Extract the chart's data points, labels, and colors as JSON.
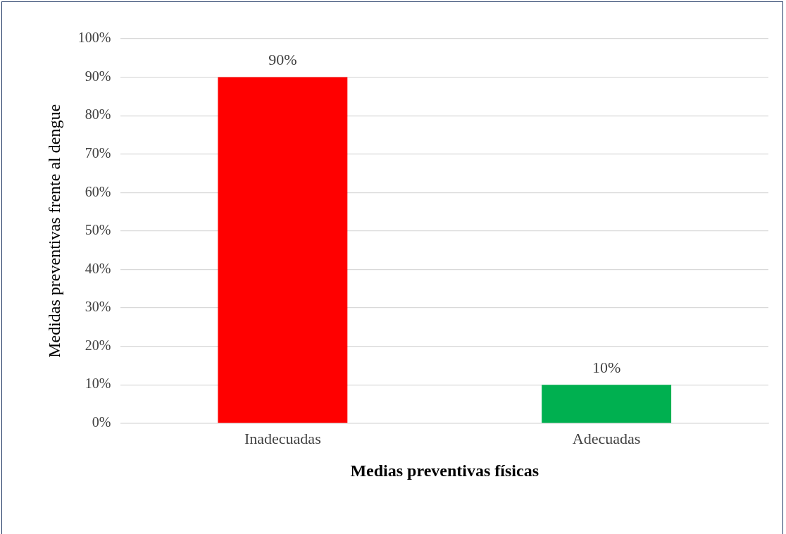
{
  "chart_data": {
    "type": "bar",
    "xlabel": "Medias preventivas físicas",
    "ylabel": "Medidas preventivas frente al dengue",
    "categories": [
      "Inadecuadas",
      "Adecuadas"
    ],
    "values": [
      90,
      10
    ],
    "colors": [
      "#ff0000",
      "#00b050"
    ],
    "value_labels": [
      "90%",
      "10%"
    ],
    "ylim": [
      0,
      100
    ],
    "yticks": [
      {
        "value": 0,
        "label": "0%"
      },
      {
        "value": 10,
        "label": "10%"
      },
      {
        "value": 20,
        "label": "20%"
      },
      {
        "value": 30,
        "label": "30%"
      },
      {
        "value": 40,
        "label": "40%"
      },
      {
        "value": 50,
        "label": "50%"
      },
      {
        "value": 60,
        "label": "60%"
      },
      {
        "value": 70,
        "label": "70%"
      },
      {
        "value": 80,
        "label": "80%"
      },
      {
        "value": 90,
        "label": "90%"
      },
      {
        "value": 100,
        "label": "100%"
      }
    ],
    "grid": "y",
    "legend": false
  }
}
